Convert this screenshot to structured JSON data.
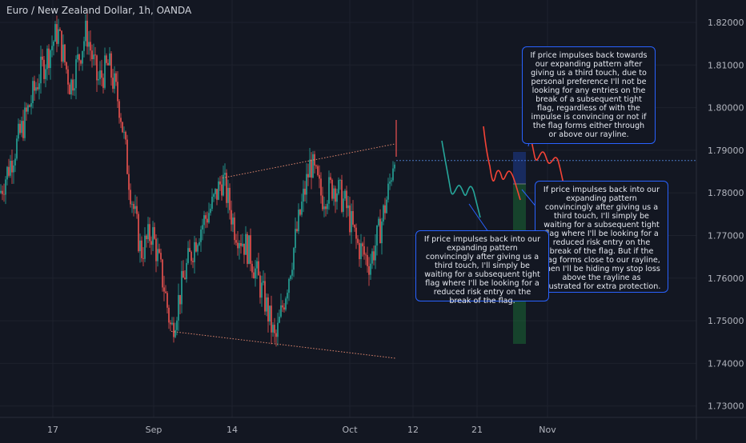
{
  "chart": {
    "title": "Euro / New Zealand Dollar, 1h, OANDA",
    "current_price_line": 1.7876
  },
  "chart_data": {
    "type": "candlestick",
    "symbol": "EUR/NZD",
    "timeframe": "1h",
    "source": "OANDA",
    "x_tick_labels": [
      "17",
      "Sep",
      "14",
      "Oct",
      "12",
      "21",
      "Nov"
    ],
    "y_tick_labels": [
      "1.82000",
      "1.81000",
      "1.80000",
      "1.79000",
      "1.78000",
      "1.77000",
      "1.76000",
      "1.75000",
      "1.74000",
      "1.73000"
    ],
    "ylim": [
      1.7265,
      1.8275
    ],
    "price_path": [
      [
        0,
        1.78
      ],
      [
        22,
        1.792
      ],
      [
        50,
        1.808
      ],
      [
        72,
        1.818
      ],
      [
        88,
        1.805
      ],
      [
        108,
        1.818
      ],
      [
        122,
        1.806
      ],
      [
        136,
        1.81
      ],
      [
        150,
        1.8
      ],
      [
        162,
        1.782
      ],
      [
        176,
        1.766
      ],
      [
        190,
        1.771
      ],
      [
        205,
        1.758
      ],
      [
        214,
        1.7475
      ],
      [
        232,
        1.762
      ],
      [
        248,
        1.771
      ],
      [
        265,
        1.777
      ],
      [
        278,
        1.7835
      ],
      [
        293,
        1.772
      ],
      [
        312,
        1.766
      ],
      [
        332,
        1.754
      ],
      [
        344,
        1.7448
      ],
      [
        360,
        1.76
      ],
      [
        376,
        1.776
      ],
      [
        388,
        1.7872
      ],
      [
        402,
        1.779
      ],
      [
        418,
        1.782
      ],
      [
        432,
        1.777
      ],
      [
        446,
        1.768
      ],
      [
        462,
        1.7635
      ],
      [
        474,
        1.771
      ],
      [
        486,
        1.781
      ],
      [
        494,
        1.7915
      ]
    ],
    "lines": [
      {
        "name": "upper-rayline",
        "from": [
          278,
          1.7835
        ],
        "to": [
          494,
          1.7915
        ]
      },
      {
        "name": "lower-rayline",
        "from": [
          214,
          1.7475
        ],
        "to": [
          494,
          1.7412
        ]
      }
    ]
  },
  "y_axis": {
    "labels": [
      {
        "text": "1.82000",
        "value": 1.82
      },
      {
        "text": "1.81000",
        "value": 1.81
      },
      {
        "text": "1.80000",
        "value": 1.8
      },
      {
        "text": "1.79000",
        "value": 1.79
      },
      {
        "text": "1.78000",
        "value": 1.78
      },
      {
        "text": "1.77000",
        "value": 1.77
      },
      {
        "text": "1.76000",
        "value": 1.76
      },
      {
        "text": "1.75000",
        "value": 1.75
      },
      {
        "text": "1.74000",
        "value": 1.74
      },
      {
        "text": "1.73000",
        "value": 1.73
      }
    ]
  },
  "x_axis": {
    "labels": [
      {
        "text": "17"
      },
      {
        "text": "Sep"
      },
      {
        "text": "14"
      },
      {
        "text": "Oct"
      },
      {
        "text": "12"
      },
      {
        "text": "21"
      },
      {
        "text": "Nov"
      }
    ]
  },
  "notes": {
    "note1": "If price impulses back towards our expanding pattern after giving us a third touch, due to personal preference I'll not be looking for any entries on the break of a subsequent tight flag, regardless of with the impulse is convincing or not if the flag forms either through or above our rayline.",
    "note2": "If price impulses back into our expanding pattern convincingly after giving us a third touch, I'll simply be waiting for a subsequent tight flag where I'll be looking for a reduced risk entry on the break of the flag. But if the flag forms close to our rayline, then I'll be hiding my stop loss above the rayline as illustrated for extra protection.",
    "note3": "If price impulses back into our expanding pattern convincingly after giving us a third touch, I'll simply be waiting for a subsequent tight flag where I'll be looking for a reduced risk entry on the break of the flag."
  },
  "colors": {
    "background": "#131722",
    "up": "#26a69a",
    "down": "#ef5350",
    "grid": "#1e222d",
    "axis_text": "#b2b5be",
    "note_border": "#2962ff",
    "path_green": "#26a69a",
    "path_red": "#f44336",
    "rayline": "#e0866e",
    "price_line": "#4a78c2"
  }
}
